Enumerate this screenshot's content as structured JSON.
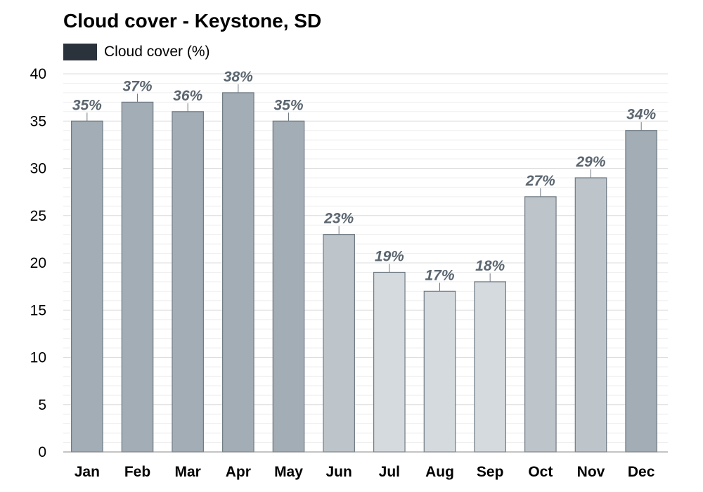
{
  "chart_data": {
    "type": "bar",
    "title": "Cloud cover - Keystone, SD",
    "legend": {
      "label": "Cloud cover (%)",
      "color": "#2a333c",
      "placement": "top-left"
    },
    "categories": [
      "Jan",
      "Feb",
      "Mar",
      "Apr",
      "May",
      "Jun",
      "Jul",
      "Aug",
      "Sep",
      "Oct",
      "Nov",
      "Dec"
    ],
    "series": [
      {
        "name": "Cloud cover (%)",
        "values": [
          35,
          37,
          36,
          38,
          35,
          23,
          19,
          17,
          18,
          27,
          29,
          34
        ]
      }
    ],
    "data_labels": [
      "35%",
      "37%",
      "36%",
      "38%",
      "35%",
      "23%",
      "19%",
      "17%",
      "18%",
      "27%",
      "29%",
      "34%"
    ],
    "bar_colors": [
      "#a3adb5",
      "#a3adb5",
      "#a3adb5",
      "#a3adb5",
      "#a3adb5",
      "#bdc4ca",
      "#d5dade",
      "#d5dade",
      "#d5dade",
      "#bdc4ca",
      "#bdc4ca",
      "#a3adb5"
    ],
    "yticks": [
      0,
      5,
      10,
      15,
      20,
      25,
      30,
      35,
      40
    ],
    "ylim": [
      0,
      40
    ],
    "xlabel": "",
    "ylabel": "",
    "grid": true
  }
}
